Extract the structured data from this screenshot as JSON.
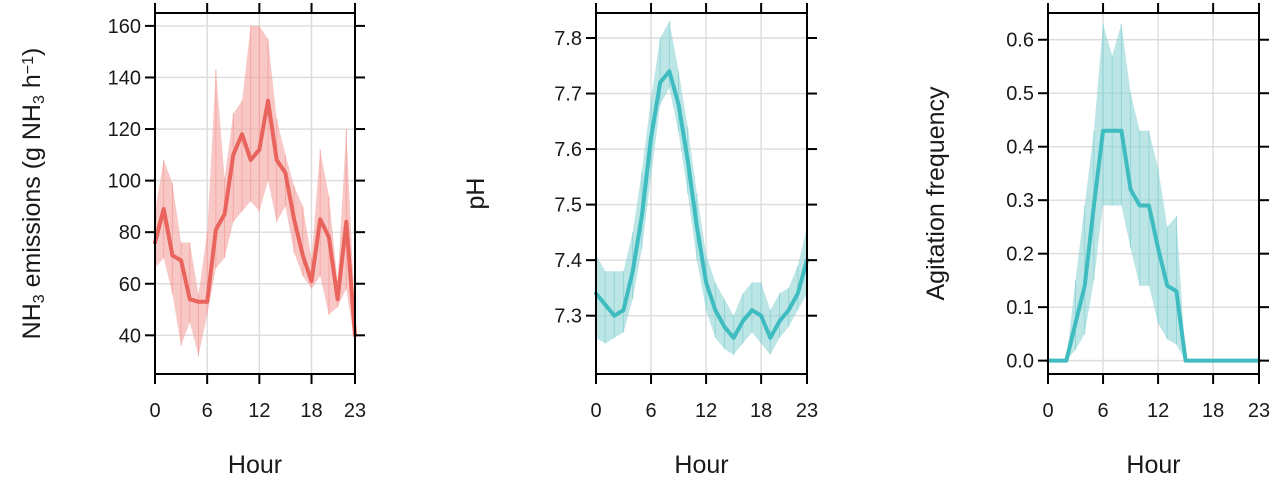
{
  "colors": {
    "nh3_line": "#e8645c",
    "nh3_band": "#f4a3a0",
    "teal_line": "#3fbcc0",
    "teal_band": "#8fd4d6"
  },
  "chart_data": [
    {
      "type": "line",
      "title": "",
      "xlabel": "Hour",
      "ylabel_parts": [
        "NH",
        "3",
        " emissions (g NH",
        "3",
        " h",
        "−1",
        ")"
      ],
      "xlim": [
        0,
        23
      ],
      "ylim": [
        25,
        165
      ],
      "xticks": [
        "0",
        "6",
        "12",
        "18",
        "23"
      ],
      "yticks": [
        "40",
        "60",
        "80",
        "100",
        "120",
        "140",
        "160"
      ],
      "grid": true,
      "series": [
        {
          "x": [
            0,
            1,
            2,
            3,
            4,
            5,
            6,
            7,
            8,
            9,
            10,
            11,
            12,
            13,
            14,
            15,
            16,
            17,
            18,
            19,
            20,
            21,
            22,
            23
          ],
          "values": [
            76,
            89,
            71,
            69,
            54,
            53,
            53,
            81,
            87,
            110,
            118,
            108,
            112,
            131,
            108,
            103,
            85,
            71,
            61,
            85,
            78,
            54,
            84,
            40
          ],
          "lower": [
            66,
            70,
            56,
            36,
            45,
            32,
            48,
            66,
            70,
            84,
            88,
            92,
            88,
            100,
            84,
            90,
            72,
            63,
            58,
            63,
            48,
            51,
            58,
            36
          ],
          "upper": [
            88,
            108,
            99,
            76,
            76,
            56,
            80,
            143,
            101,
            126,
            131,
            160,
            160,
            155,
            124,
            110,
            98,
            90,
            70,
            112,
            94,
            61,
            120,
            48
          ]
        }
      ]
    },
    {
      "type": "line",
      "title": "",
      "xlabel": "Hour",
      "ylabel": "pH",
      "xlim": [
        0,
        23
      ],
      "ylim": [
        7.195,
        7.845
      ],
      "xticks": [
        "0",
        "6",
        "12",
        "18",
        "23"
      ],
      "yticks": [
        "7.3",
        "7.4",
        "7.5",
        "7.6",
        "7.7",
        "7.8"
      ],
      "grid": true,
      "series": [
        {
          "x": [
            0,
            1,
            2,
            3,
            4,
            5,
            6,
            7,
            8,
            9,
            10,
            11,
            12,
            13,
            14,
            15,
            16,
            17,
            18,
            19,
            20,
            21,
            22,
            23
          ],
          "values": [
            7.34,
            7.32,
            7.3,
            7.31,
            7.38,
            7.48,
            7.62,
            7.72,
            7.74,
            7.68,
            7.58,
            7.46,
            7.36,
            7.31,
            7.28,
            7.26,
            7.29,
            7.31,
            7.3,
            7.26,
            7.29,
            7.31,
            7.34,
            7.4
          ],
          "lower": [
            7.26,
            7.25,
            7.26,
            7.27,
            7.33,
            7.42,
            7.55,
            7.68,
            7.71,
            7.63,
            7.52,
            7.4,
            7.31,
            7.26,
            7.24,
            7.23,
            7.25,
            7.27,
            7.25,
            7.23,
            7.26,
            7.28,
            7.31,
            7.34
          ],
          "upper": [
            7.41,
            7.38,
            7.38,
            7.38,
            7.45,
            7.56,
            7.69,
            7.8,
            7.83,
            7.74,
            7.64,
            7.52,
            7.41,
            7.36,
            7.33,
            7.3,
            7.34,
            7.36,
            7.36,
            7.31,
            7.34,
            7.35,
            7.39,
            7.46
          ]
        }
      ]
    },
    {
      "type": "line",
      "title": "",
      "xlabel": "Hour",
      "ylabel": "Agitation frequency",
      "xlim": [
        0,
        23
      ],
      "ylim": [
        -0.025,
        0.65
      ],
      "xticks": [
        "0",
        "6",
        "12",
        "18",
        "23"
      ],
      "yticks": [
        "0.0",
        "0.1",
        "0.2",
        "0.3",
        "0.4",
        "0.5",
        "0.6"
      ],
      "grid": true,
      "series": [
        {
          "x": [
            0,
            1,
            2,
            3,
            4,
            5,
            6,
            7,
            8,
            9,
            10,
            11,
            12,
            13,
            14,
            15,
            16,
            17,
            18,
            19,
            20,
            21,
            22,
            23
          ],
          "values": [
            0,
            0,
            0,
            0.07,
            0.14,
            0.29,
            0.43,
            0.43,
            0.43,
            0.32,
            0.29,
            0.29,
            0.21,
            0.14,
            0.13,
            0,
            0,
            0,
            0,
            0,
            0,
            0,
            0,
            0
          ],
          "lower": [
            0,
            0,
            0,
            0.02,
            0.05,
            0.15,
            0.29,
            0.29,
            0.29,
            0.21,
            0.14,
            0.14,
            0.07,
            0.04,
            0.03,
            0,
            0,
            0,
            0,
            0,
            0,
            0,
            0,
            0
          ],
          "upper": [
            0,
            0,
            0,
            0.15,
            0.29,
            0.43,
            0.63,
            0.57,
            0.63,
            0.5,
            0.43,
            0.43,
            0.36,
            0.25,
            0.27,
            0,
            0,
            0,
            0,
            0,
            0,
            0,
            0,
            0
          ]
        }
      ]
    }
  ]
}
